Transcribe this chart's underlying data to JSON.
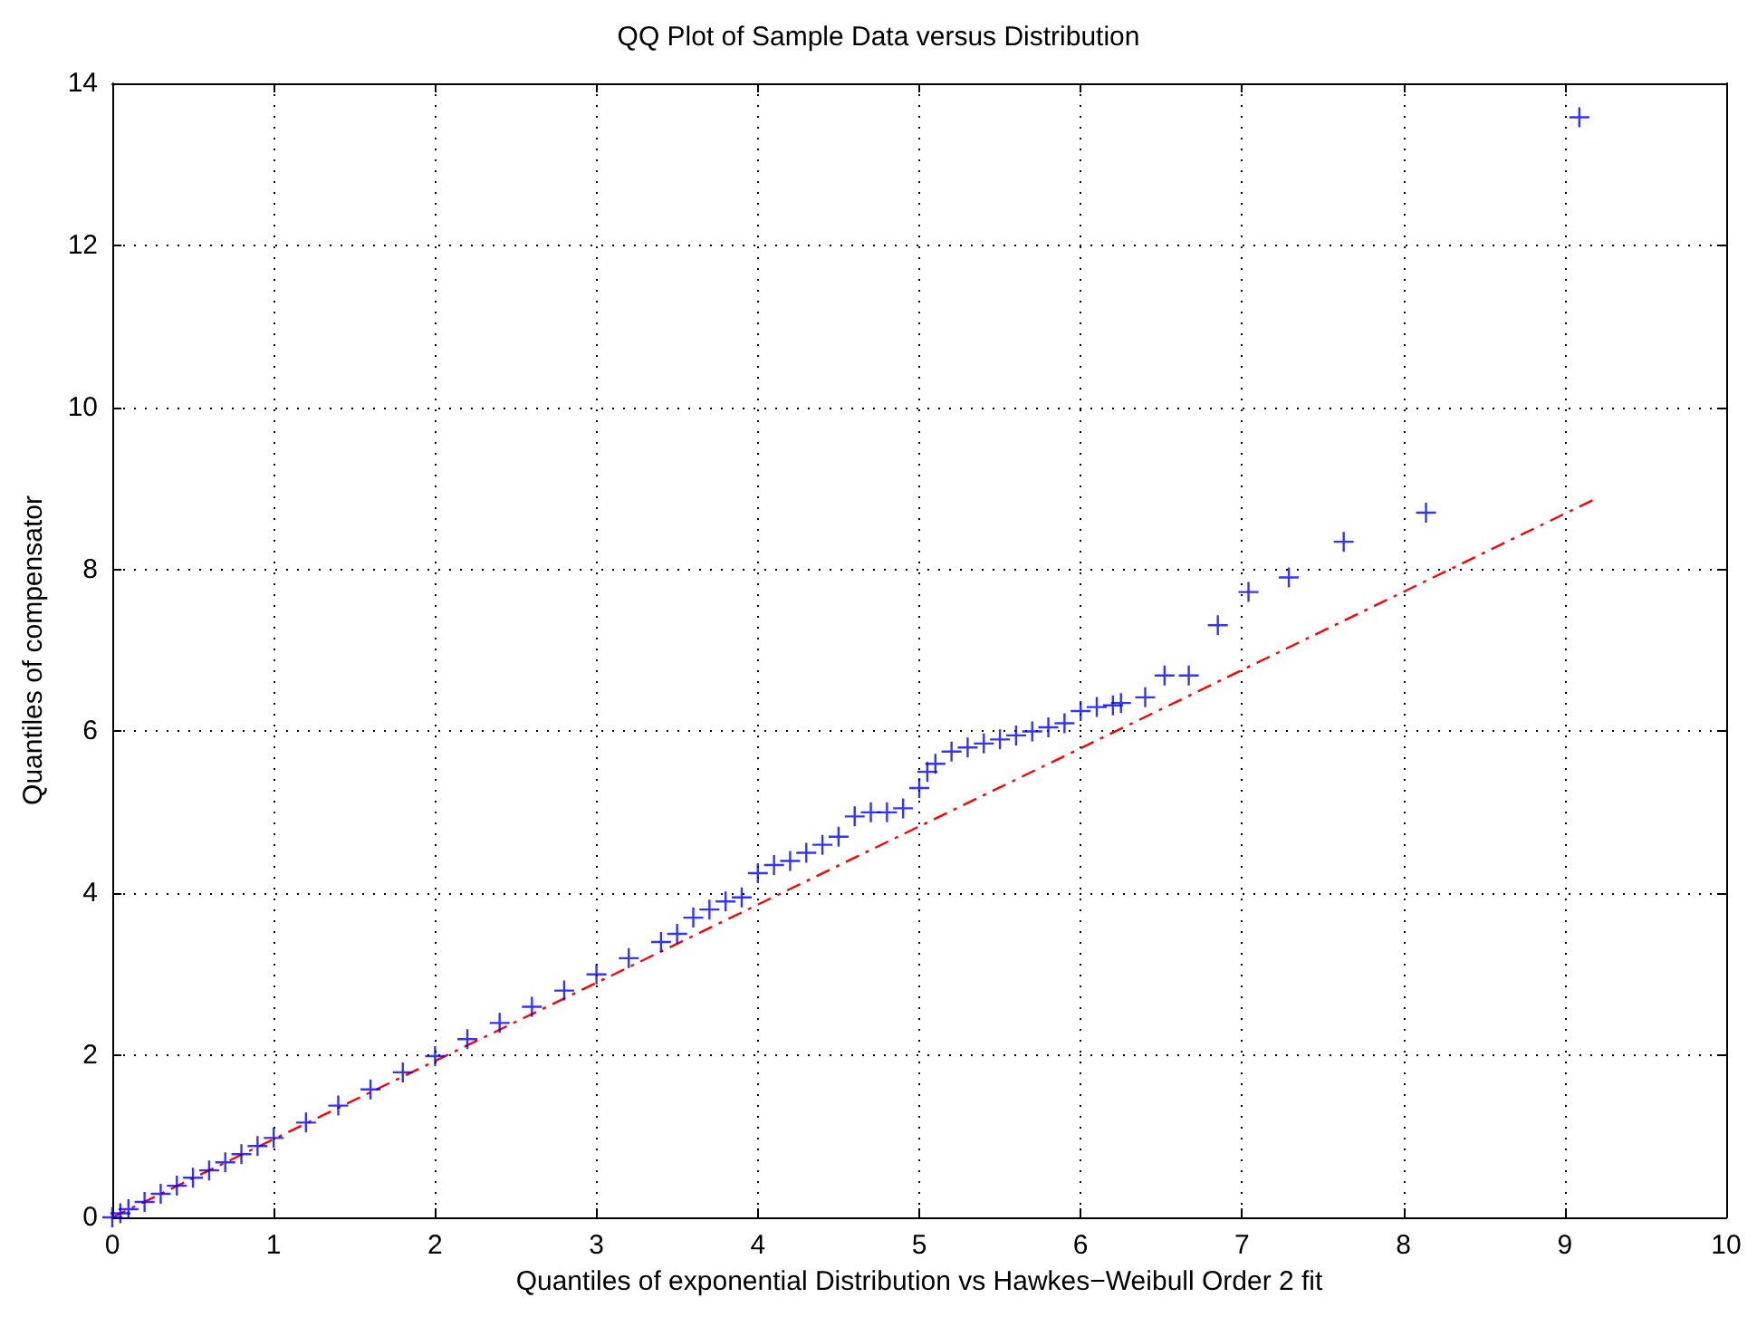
{
  "chart_data": {
    "type": "scatter",
    "title": "QQ Plot of Sample Data versus Distribution",
    "xlabel": "Quantiles of exponential Distribution vs Hawkes−Weibull Order 2 fit",
    "ylabel": "Quantiles of compensator",
    "xlim": [
      0,
      10
    ],
    "xticks": [
      0,
      1,
      2,
      3,
      4,
      5,
      6,
      7,
      8,
      9,
      10
    ],
    "ylim": [
      0,
      14
    ],
    "yticks": [
      0,
      2,
      4,
      6,
      8,
      10,
      12,
      14
    ],
    "grid": true,
    "marker": "cross",
    "series": [
      {
        "color": "#0000ff",
        "x": [
          0,
          0.05,
          0.1,
          0.2,
          0.3,
          0.4,
          0.5,
          0.6,
          0.7,
          0.8,
          0.9,
          1.0,
          1.2,
          1.4,
          1.6,
          1.8,
          2.0,
          2.2,
          2.4,
          2.6,
          2.8,
          3.0,
          3.2,
          3.4,
          3.5,
          3.6,
          3.7,
          3.8,
          3.9,
          4.0,
          4.1,
          4.2,
          4.3,
          4.4,
          4.5,
          4.6,
          4.7,
          4.8,
          4.9,
          5.0,
          5.05,
          5.1,
          5.2,
          5.3,
          5.4,
          5.5,
          5.6,
          5.7,
          5.8,
          5.9,
          6.0,
          6.1,
          6.2,
          6.25,
          6.4,
          6.52,
          6.67,
          6.85,
          7.04,
          7.29,
          7.63,
          8.14,
          9.09
        ],
        "values": [
          0,
          0.05,
          0.1,
          0.19,
          0.29,
          0.39,
          0.49,
          0.58,
          0.68,
          0.78,
          0.88,
          0.98,
          1.17,
          1.38,
          1.58,
          1.79,
          1.99,
          2.2,
          2.4,
          2.6,
          2.8,
          3.0,
          3.2,
          3.4,
          3.5,
          3.7,
          3.8,
          3.9,
          3.95,
          4.25,
          4.35,
          4.4,
          4.5,
          4.6,
          4.7,
          4.95,
          5.0,
          5.0,
          5.05,
          5.3,
          5.5,
          5.6,
          5.75,
          5.8,
          5.85,
          5.9,
          5.95,
          6.0,
          6.05,
          6.1,
          6.25,
          6.3,
          6.32,
          6.35,
          6.42,
          6.69,
          6.69,
          7.31,
          7.72,
          7.9,
          8.34,
          8.7,
          13.58
        ]
      },
      {
        "type": "line",
        "color": "#ff0000",
        "line_style": "dashed",
        "marker": "none",
        "x": [
          0,
          9.2
        ],
        "values": [
          0,
          8.88
        ]
      }
    ]
  }
}
